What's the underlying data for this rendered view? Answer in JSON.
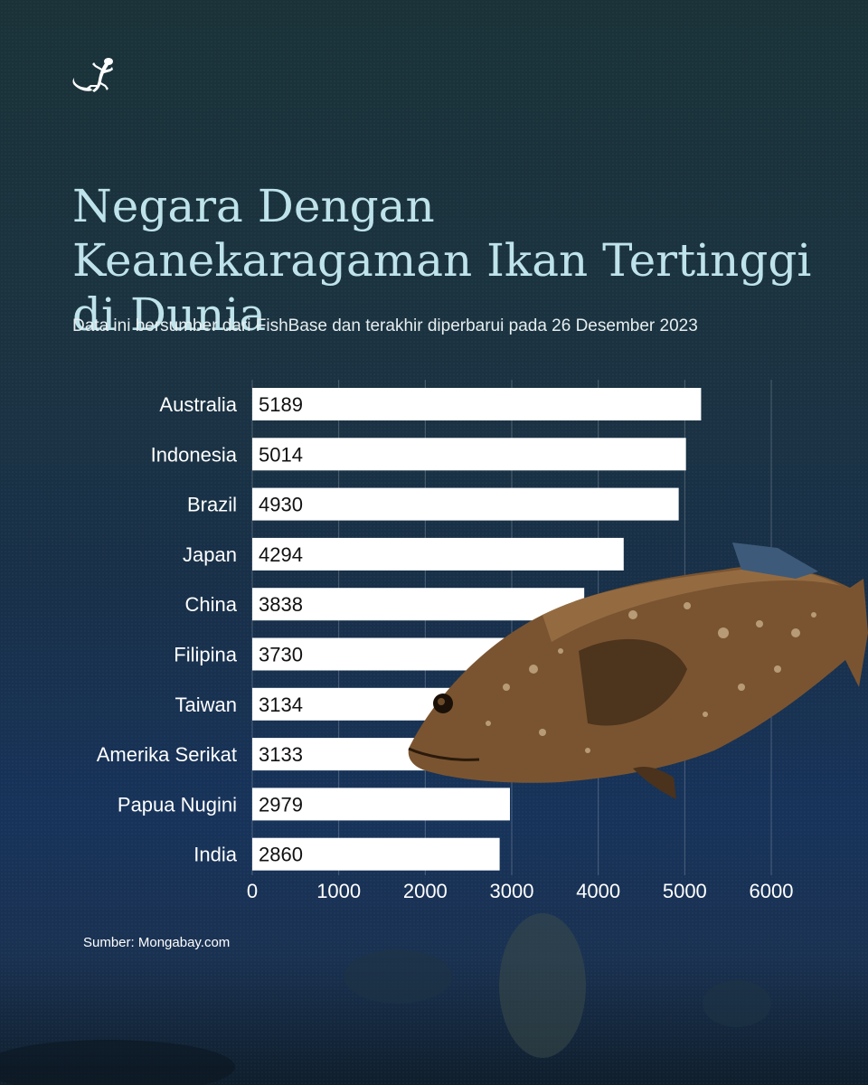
{
  "brand": {
    "logo_icon": "gecko-icon"
  },
  "header": {
    "title": "Negara Dengan Keanekaragaman Ikan Tertinggi di Dunia",
    "subtitle": "Data ini bersumber dari FishBase dan terakhir diperbarui pada 26 Desember 2023"
  },
  "chart_data": {
    "type": "bar",
    "orientation": "horizontal",
    "title": "Negara Dengan Keanekaragaman Ikan Tertinggi di Dunia",
    "categories": [
      "Australia",
      "Indonesia",
      "Brazil",
      "Japan",
      "China",
      "Filipina",
      "Taiwan",
      "Amerika Serikat",
      "Papua Nugini",
      "India"
    ],
    "values": [
      5189,
      5014,
      4930,
      4294,
      3838,
      3730,
      3134,
      3133,
      2979,
      2860
    ],
    "value_labels": [
      "5189",
      "5014",
      "4930",
      "4294",
      "3838",
      "3730",
      "3134",
      "3133",
      "2979",
      "2860"
    ],
    "xlim": [
      0,
      6000
    ],
    "xticks": [
      0,
      1000,
      2000,
      3000,
      4000,
      5000,
      6000
    ],
    "xtick_labels": [
      "0",
      "1000",
      "2000",
      "3000",
      "4000",
      "5000",
      "6000"
    ],
    "xlabel": "",
    "ylabel": "",
    "grid": true,
    "bar_color": "#ffffff"
  },
  "footer": {
    "source": "Sumber: Mongabay.com"
  },
  "colors": {
    "background_top": "#1a3238",
    "background_bottom": "#17335a",
    "title": "#bfe3ea",
    "bar": "#ffffff",
    "text": "#ffffff"
  }
}
